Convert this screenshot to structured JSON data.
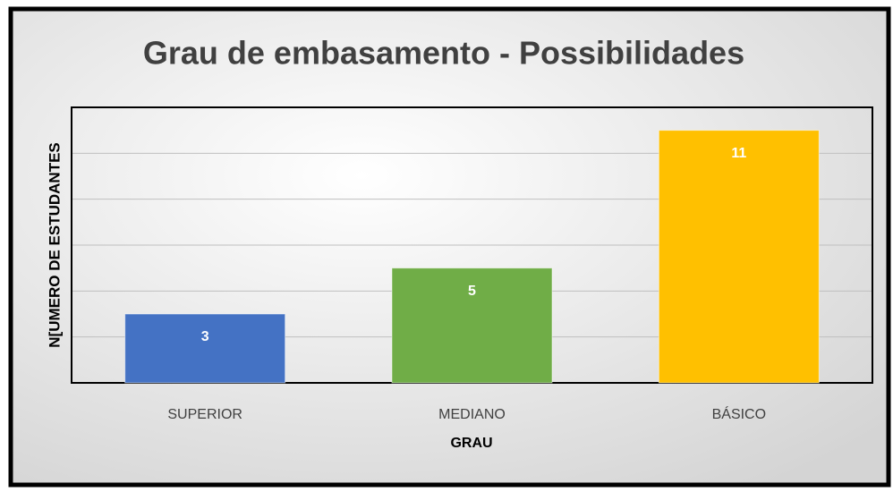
{
  "chart_data": {
    "type": "bar",
    "title": "Grau de embasamento - Possibilidades",
    "x_label": "GRAU",
    "y_label": "N[UMERO DE ESTUDANTES",
    "categories": [
      "SUPERIOR",
      "MEDIANO",
      "BÁSICO"
    ],
    "values": [
      3,
      5,
      11
    ],
    "colors": [
      "#4472c4",
      "#70ad47",
      "#ffc000"
    ],
    "ylim": [
      0,
      12
    ],
    "yticks": [
      0,
      2,
      4,
      6,
      8,
      10,
      12
    ],
    "grid": true
  }
}
